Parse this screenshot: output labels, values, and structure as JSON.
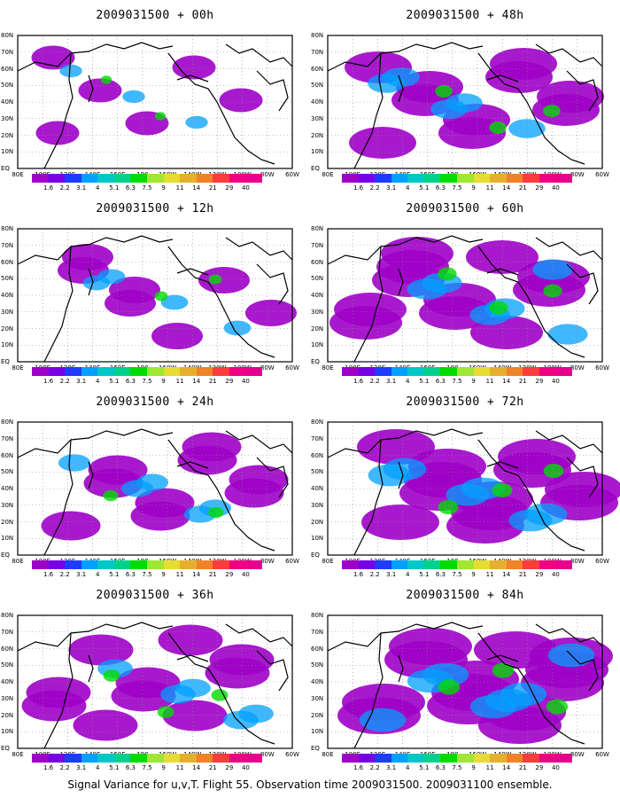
{
  "panels": [
    {
      "title": "2009031500 + 00h",
      "level": 0.15
    },
    {
      "title": "2009031500 + 48h",
      "level": 0.6
    },
    {
      "title": "2009031500 + 12h",
      "level": 0.3
    },
    {
      "title": "2009031500 + 60h",
      "level": 0.7
    },
    {
      "title": "2009031500 + 24h",
      "level": 0.45
    },
    {
      "title": "2009031500 + 72h",
      "level": 0.8
    },
    {
      "title": "2009031500 + 36h",
      "level": 0.55
    },
    {
      "title": "2009031500 + 84h",
      "level": 0.9
    }
  ],
  "y_ticks": [
    "80N",
    "70N",
    "60N",
    "50N",
    "40N",
    "30N",
    "20N",
    "10N",
    "EQ"
  ],
  "x_ticks": [
    "80E",
    "100E",
    "120E",
    "140E",
    "160E",
    "180",
    "160W",
    "140W",
    "120W",
    "100W",
    "80W",
    "60W"
  ],
  "legend": {
    "labels": [
      "1.6",
      "2.2",
      "3.1",
      "4",
      "5.1",
      "6.3",
      "7.5",
      "9",
      "11",
      "14",
      "21",
      "29",
      "40"
    ],
    "colors": [
      "#9e00c8",
      "#7800e6",
      "#1e3cff",
      "#00a0ff",
      "#00c8c8",
      "#00d28c",
      "#00dc00",
      "#a0e632",
      "#e6dc32",
      "#e6af2d",
      "#f08228",
      "#fa3c3c",
      "#f00082"
    ]
  },
  "caption": "Signal Variance for u,v,T. Flight 55. Observation time 2009031500. 2009031100 ensemble."
}
